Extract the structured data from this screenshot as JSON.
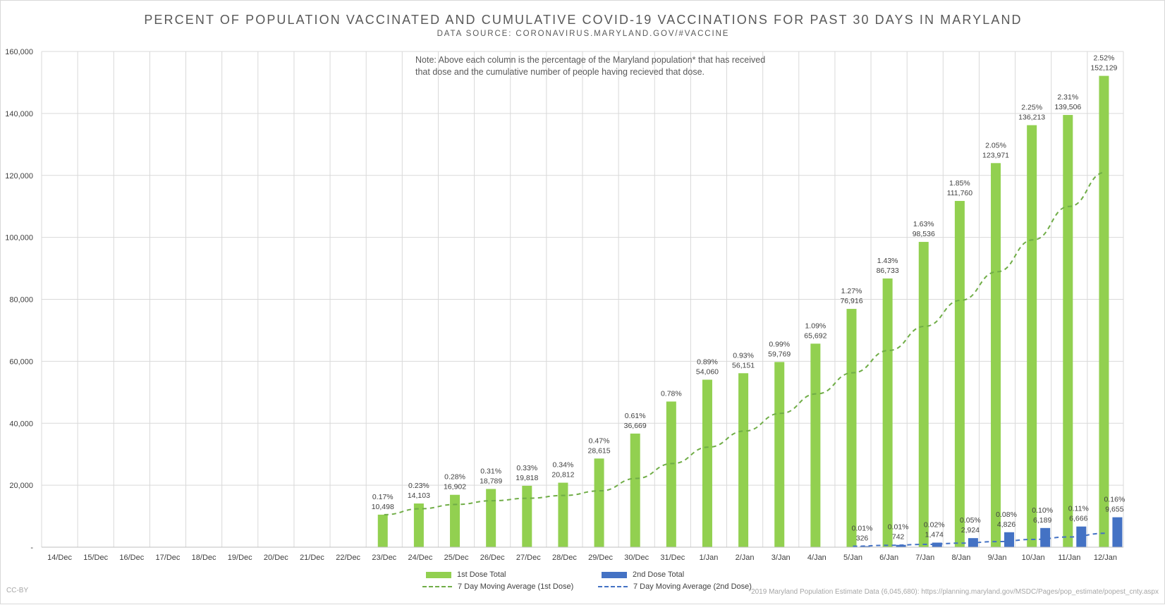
{
  "title": "PERCENT OF POPULATION VACCINATED AND CUMULATIVE COVID-19 VACCINATIONS FOR PAST 30 DAYS IN MARYLAND",
  "subtitle": "DATA SOURCE: CORONAVIRUS.MARYLAND.GOV/#VACCINE",
  "note": "Note: Above each column is the percentage of the Maryland population* that has received that dose and the cumulative number of people having recieved that dose.",
  "credit": "CC-BY",
  "footnote": "*2019 Maryland Population Estimate Data (6,045,680): https://planning.maryland.gov/MSDC/Pages/pop_estimate/popest_cnty.aspx",
  "legend": {
    "dose1": "1st Dose Total",
    "dose2": "2nd Dose Total",
    "ma1": "7 Day Moving Average (1st Dose)",
    "ma2": "7 Day Moving Average (2nd Dose)"
  },
  "colors": {
    "dose1": "#92d050",
    "dose2": "#4472c4",
    "ma1": "#70ad47",
    "ma2": "#4472c4",
    "grid": "#d9d9d9",
    "text": "#404040"
  },
  "chart_data": {
    "type": "bar",
    "categories": [
      "14/Dec",
      "15/Dec",
      "16/Dec",
      "17/Dec",
      "18/Dec",
      "19/Dec",
      "20/Dec",
      "21/Dec",
      "22/Dec",
      "23/Dec",
      "24/Dec",
      "25/Dec",
      "26/Dec",
      "27/Dec",
      "28/Dec",
      "29/Dec",
      "30/Dec",
      "31/Dec",
      "1/Jan",
      "2/Jan",
      "3/Jan",
      "4/Jan",
      "5/Jan",
      "6/Jan",
      "7/Jan",
      "8/Jan",
      "9/Jan",
      "10/Jan",
      "11/Jan",
      "12/Jan"
    ],
    "ylim": [
      0,
      160000
    ],
    "yticks": [
      0,
      20000,
      40000,
      60000,
      80000,
      100000,
      120000,
      140000,
      160000
    ],
    "ytick_labels": [
      "-",
      "20,000",
      "40,000",
      "60,000",
      "80,000",
      "100,000",
      "120,000",
      "140,000",
      "160,000"
    ],
    "grid": true,
    "legend_position": "bottom",
    "series": [
      {
        "name": "1st Dose Total",
        "values": [
          null,
          null,
          null,
          null,
          null,
          null,
          null,
          null,
          null,
          10498,
          14103,
          16902,
          18789,
          19818,
          20812,
          28615,
          36669,
          47012,
          54060,
          56151,
          59769,
          65692,
          76916,
          86733,
          98536,
          111760,
          123971,
          136213,
          139506,
          152129
        ],
        "pct_labels": [
          null,
          null,
          null,
          null,
          null,
          null,
          null,
          null,
          null,
          "0.17%",
          "0.23%",
          "0.28%",
          "0.31%",
          "0.33%",
          "0.34%",
          "0.47%",
          "0.61%",
          "0.78%",
          "0.89%",
          "0.93%",
          "0.99%",
          "1.09%",
          "1.27%",
          "1.43%",
          "1.63%",
          "1.85%",
          "2.05%",
          "2.25%",
          "2.31%",
          "2.52%"
        ],
        "value_labels": [
          null,
          null,
          null,
          null,
          null,
          null,
          null,
          null,
          null,
          "10,498",
          "14,103",
          "16,902",
          "18,789",
          "19,818",
          "20,812",
          "28,615",
          "36,669",
          "47,012",
          "54,060",
          "56,151",
          "59,769",
          "65,692",
          "76,916",
          "86,733",
          "98,536",
          "111,760",
          "123,971",
          "136,213",
          "139,506",
          "152,129"
        ],
        "shown_labels": [
          false,
          false,
          false,
          false,
          false,
          false,
          false,
          false,
          false,
          true,
          true,
          true,
          true,
          true,
          true,
          true,
          true,
          true,
          true,
          true,
          true,
          true,
          true,
          true,
          true,
          true,
          true,
          true,
          true,
          true
        ],
        "show_value_label": [
          false,
          false,
          false,
          false,
          false,
          false,
          false,
          false,
          false,
          true,
          true,
          true,
          true,
          true,
          true,
          true,
          true,
          false,
          true,
          true,
          true,
          true,
          true,
          true,
          true,
          true,
          true,
          true,
          true,
          true
        ]
      },
      {
        "name": "2nd Dose Total",
        "values": [
          null,
          null,
          null,
          null,
          null,
          null,
          null,
          null,
          null,
          null,
          null,
          null,
          null,
          null,
          null,
          null,
          null,
          null,
          null,
          null,
          null,
          null,
          326,
          742,
          1474,
          2924,
          4826,
          6189,
          6666,
          9655
        ],
        "pct_labels": [
          null,
          null,
          null,
          null,
          null,
          null,
          null,
          null,
          null,
          null,
          null,
          null,
          null,
          null,
          null,
          null,
          null,
          null,
          null,
          null,
          null,
          null,
          "0.01%",
          "0.01%",
          "0.02%",
          "0.05%",
          "0.08%",
          "0.10%",
          "0.11%",
          "0.16%"
        ],
        "value_labels": [
          null,
          null,
          null,
          null,
          null,
          null,
          null,
          null,
          null,
          null,
          null,
          null,
          null,
          null,
          null,
          null,
          null,
          null,
          null,
          null,
          null,
          null,
          "326",
          "742",
          "1,474",
          "2,924",
          "4,826",
          "6,189",
          "6,666",
          "9,655"
        ]
      },
      {
        "name": "7 Day Moving Average (1st Dose)",
        "style": "dashed-line",
        "values": [
          null,
          null,
          null,
          null,
          null,
          null,
          null,
          null,
          null,
          10500,
          12400,
          13800,
          15000,
          15800,
          16700,
          18200,
          22200,
          27000,
          32300,
          37500,
          43200,
          49500,
          56300,
          63500,
          71300,
          79700,
          88900,
          99200,
          110000,
          121000
        ]
      },
      {
        "name": "7 Day Moving Average (2nd Dose)",
        "style": "dashed-line",
        "values": [
          null,
          null,
          null,
          null,
          null,
          null,
          null,
          null,
          null,
          null,
          null,
          null,
          null,
          null,
          null,
          null,
          null,
          null,
          null,
          null,
          null,
          null,
          300,
          600,
          900,
          1300,
          1800,
          2500,
          3300,
          4500
        ]
      }
    ]
  }
}
